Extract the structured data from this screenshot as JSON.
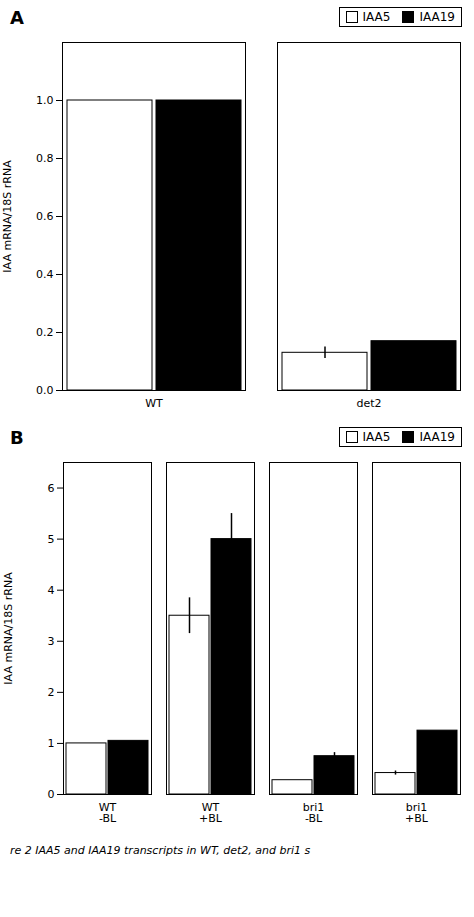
{
  "chart_data": [
    {
      "type": "bar",
      "title": "A",
      "categories": [
        "WT",
        "det2"
      ],
      "series": [
        {
          "name": "IAA5",
          "color": "white",
          "values": [
            1.0,
            0.13
          ],
          "errors": [
            0.0,
            0.02
          ]
        },
        {
          "name": "IAA19",
          "color": "black",
          "values": [
            1.0,
            0.17
          ],
          "errors": [
            0.0,
            0.0
          ]
        }
      ],
      "y_label": "IAA mRNA/18S rRNA",
      "ylim": [
        0,
        1.2
      ],
      "yticks": [
        {
          "value": 0,
          "label": "0.0"
        },
        0.2,
        0.4,
        0.6,
        0.8,
        {
          "value": 1.0,
          "label": "1.0"
        }
      ],
      "legend": "upper right",
      "grid": false
    },
    {
      "type": "bar",
      "title": "B",
      "categories": [
        "WT\n-BL",
        "WT\n+BL",
        "bri1\n-BL",
        "bri1\n+BL"
      ],
      "series": [
        {
          "name": "IAA5",
          "color": "white",
          "values": [
            1.0,
            3.5,
            0.28,
            0.42
          ],
          "errors": [
            0.0,
            0.35,
            0.0,
            0.04
          ]
        },
        {
          "name": "IAA19",
          "color": "black",
          "values": [
            1.05,
            5.0,
            0.75,
            1.25
          ],
          "errors": [
            0.0,
            0.5,
            0.07,
            0.0
          ]
        }
      ],
      "y_label": "IAA mRNA/18S rRNA",
      "ylim": [
        0,
        6.5
      ],
      "yticks": [
        0,
        1,
        2,
        3,
        4,
        5,
        6
      ],
      "legend": "upper right",
      "grid": false,
      "caption": "re 2   IAA5 and IAA19 transcripts in WT, det2, and bri1 s"
    }
  ]
}
